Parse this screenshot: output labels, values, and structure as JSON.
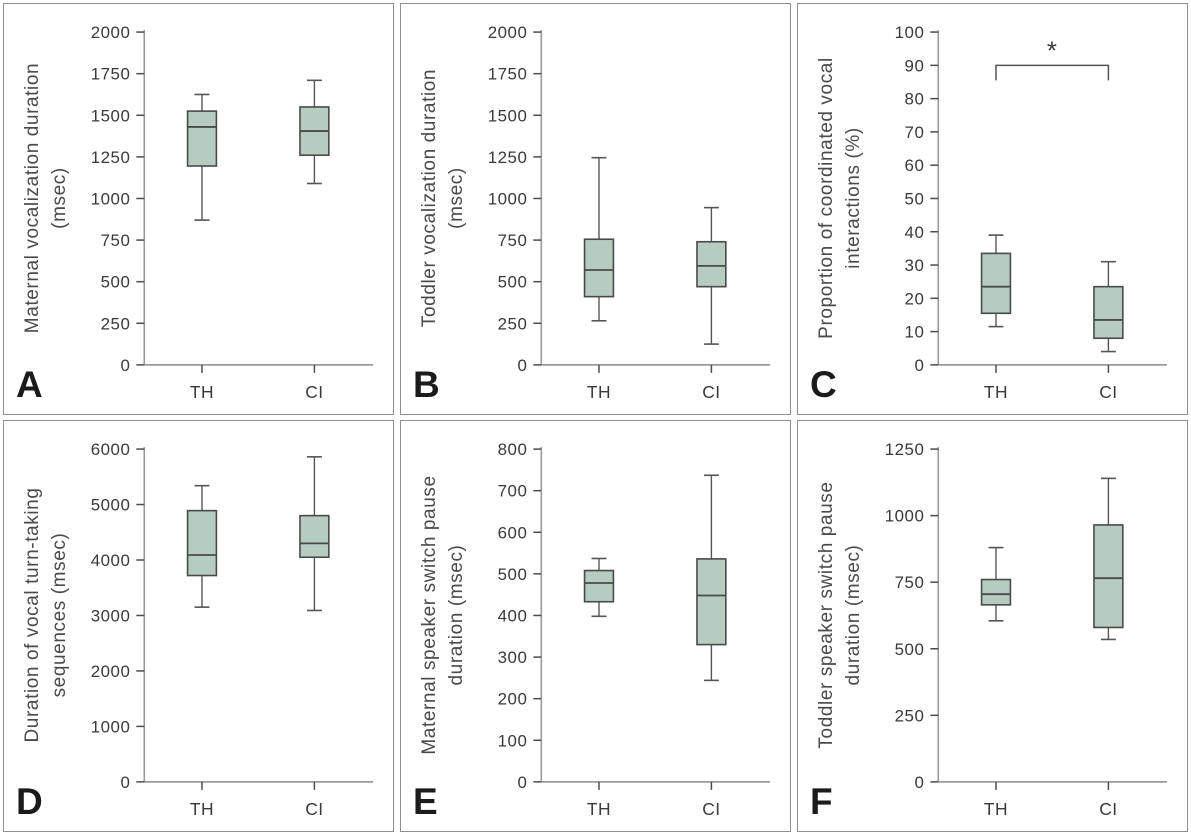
{
  "figure": {
    "categories": [
      "TH",
      "CI"
    ],
    "colors": {
      "box_fill": "#b7ccc0",
      "box_stroke": "#4a4a4a",
      "whisker": "#555555",
      "axis_line": "#9a9a9a",
      "x_axis_line": "#8a8a8a",
      "tick_mark": "#4d4d4d",
      "tick_text": "#3a3a3a",
      "panel_border": "#8f8f8f",
      "letter": "#1b1b1b",
      "background": "#ffffff"
    }
  },
  "chart_data": [
    {
      "type": "box",
      "panel": "A",
      "ylabel": "Maternal vocalization duration (msec)",
      "ylabel_line1": "Maternal vocalization duration",
      "ylabel_line2": "(msec)",
      "ylim": [
        0,
        2000
      ],
      "yticks": [
        0,
        250,
        500,
        750,
        1000,
        1250,
        1500,
        1750,
        2000
      ],
      "categories": [
        "TH",
        "CI"
      ],
      "series": [
        {
          "name": "TH",
          "whisker_low": 870,
          "q1": 1195,
          "median": 1430,
          "q3": 1525,
          "whisker_high": 1625
        },
        {
          "name": "CI",
          "whisker_low": 1090,
          "q1": 1260,
          "median": 1405,
          "q3": 1550,
          "whisker_high": 1710
        }
      ],
      "significance": null
    },
    {
      "type": "box",
      "panel": "B",
      "ylabel": "Toddler vocalization duration (msec)",
      "ylabel_line1": "Toddler vocalization duration",
      "ylabel_line2": "(msec)",
      "ylim": [
        0,
        2000
      ],
      "yticks": [
        0,
        250,
        500,
        750,
        1000,
        1250,
        1500,
        1750,
        2000
      ],
      "categories": [
        "TH",
        "CI"
      ],
      "series": [
        {
          "name": "TH",
          "whisker_low": 265,
          "q1": 410,
          "median": 570,
          "q3": 755,
          "whisker_high": 1245
        },
        {
          "name": "CI",
          "whisker_low": 125,
          "q1": 470,
          "median": 595,
          "q3": 740,
          "whisker_high": 945
        }
      ],
      "significance": null
    },
    {
      "type": "box",
      "panel": "C",
      "ylabel": "Proportion of coordinated vocal interactions (%)",
      "ylabel_line1": "Proportion of coordinated vocal",
      "ylabel_line2": "interactions (%)",
      "ylim": [
        0,
        100
      ],
      "yticks": [
        0,
        10,
        20,
        30,
        40,
        50,
        60,
        70,
        80,
        90,
        100
      ],
      "categories": [
        "TH",
        "CI"
      ],
      "series": [
        {
          "name": "TH",
          "whisker_low": 11.5,
          "q1": 15.5,
          "median": 23.5,
          "q3": 33.5,
          "whisker_high": 39
        },
        {
          "name": "CI",
          "whisker_low": 4,
          "q1": 8,
          "median": 13.5,
          "q3": 23.5,
          "whisker_high": 31
        }
      ],
      "significance": {
        "between": [
          "TH",
          "CI"
        ],
        "label": "*",
        "bracket_y": 90,
        "bracket_tick_drop": 4.5
      }
    },
    {
      "type": "box",
      "panel": "D",
      "ylabel": "Duration of vocal turn-taking sequences (msec)",
      "ylabel_line1": "Duration of vocal turn-taking",
      "ylabel_line2": "sequences (msec)",
      "ylim": [
        0,
        6000
      ],
      "yticks": [
        0,
        1000,
        2000,
        3000,
        4000,
        5000,
        6000
      ],
      "categories": [
        "TH",
        "CI"
      ],
      "series": [
        {
          "name": "TH",
          "whisker_low": 3150,
          "q1": 3720,
          "median": 4090,
          "q3": 4890,
          "whisker_high": 5340
        },
        {
          "name": "CI",
          "whisker_low": 3090,
          "q1": 4050,
          "median": 4300,
          "q3": 4800,
          "whisker_high": 5860
        }
      ],
      "significance": null
    },
    {
      "type": "box",
      "panel": "E",
      "ylabel": "Maternal speaker switch pause duration (msec)",
      "ylabel_line1": "Maternal speaker switch pause",
      "ylabel_line2": "duration (msec)",
      "ylim": [
        0,
        800
      ],
      "yticks": [
        0,
        100,
        200,
        300,
        400,
        500,
        600,
        700,
        800
      ],
      "categories": [
        "TH",
        "CI"
      ],
      "series": [
        {
          "name": "TH",
          "whisker_low": 398,
          "q1": 433,
          "median": 478,
          "q3": 508,
          "whisker_high": 537
        },
        {
          "name": "CI",
          "whisker_low": 244,
          "q1": 330,
          "median": 448,
          "q3": 536,
          "whisker_high": 737
        }
      ],
      "significance": null
    },
    {
      "type": "box",
      "panel": "F",
      "ylabel": "Toddler speaker switch pause duration (msec)",
      "ylabel_line1": "Toddler speaker switch pause",
      "ylabel_line2": "duration (msec)",
      "ylim": [
        0,
        1250
      ],
      "yticks": [
        0,
        250,
        500,
        750,
        1000,
        1250
      ],
      "categories": [
        "TH",
        "CI"
      ],
      "series": [
        {
          "name": "TH",
          "whisker_low": 605,
          "q1": 665,
          "median": 705,
          "q3": 760,
          "whisker_high": 880
        },
        {
          "name": "CI",
          "whisker_low": 535,
          "q1": 580,
          "median": 765,
          "q3": 965,
          "whisker_high": 1140
        }
      ],
      "significance": null
    }
  ]
}
